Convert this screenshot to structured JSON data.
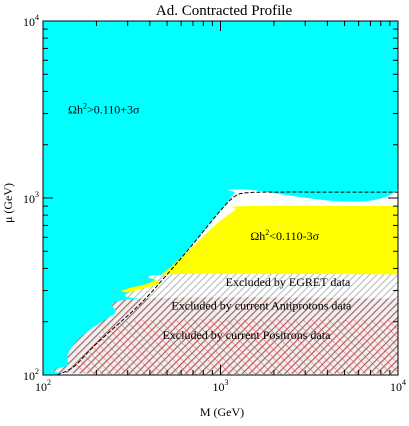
{
  "chart_data": {
    "type": "area",
    "title": "Ad. Contracted Profile",
    "xlabel": "M (GeV)",
    "ylabel": "μ (GeV)",
    "xscale": "log",
    "yscale": "log",
    "xlim": [
      100,
      10000
    ],
    "ylim": [
      100,
      10000
    ],
    "x_ticks": [
      {
        "base": "10",
        "exp": "2",
        "value": 100
      },
      {
        "base": "10",
        "exp": "3",
        "value": 1000
      },
      {
        "base": "10",
        "exp": "4",
        "value": 10000
      }
    ],
    "y_ticks": [
      {
        "base": "10",
        "exp": "2",
        "value": 100
      },
      {
        "base": "10",
        "exp": "3",
        "value": 1000
      },
      {
        "base": "10",
        "exp": "4",
        "value": 10000
      }
    ],
    "regions": [
      {
        "name": "high_relic_density",
        "label": "Ωh²>0.110+3σ",
        "label_parts": {
          "base": "Ωh",
          "sup": "2",
          "rest": ">0.110+3σ"
        },
        "color": "#00ffff",
        "boundary": [
          [
            100,
            100
          ],
          [
            100,
            10000
          ],
          [
            10000,
            10000
          ],
          [
            10000,
            1120
          ],
          [
            1300,
            1120
          ],
          [
            1200,
            1060
          ],
          [
            1000,
            850
          ],
          [
            700,
            550
          ],
          [
            500,
            370
          ],
          [
            350,
            250
          ],
          [
            200,
            150
          ],
          [
            150,
            112
          ],
          [
            120,
            100
          ]
        ]
      },
      {
        "name": "low_relic_density",
        "label": "Ωh²<0.110-3σ",
        "label_parts": {
          "base": "Ωh",
          "sup": "2",
          "rest": "<0.110-3σ"
        },
        "color": "#ffff00",
        "boundary": [
          [
            10000,
            900
          ],
          [
            1400,
            900
          ],
          [
            1200,
            850
          ],
          [
            900,
            680
          ],
          [
            600,
            460
          ],
          [
            420,
            340
          ],
          [
            340,
            290
          ],
          [
            10000,
            290
          ]
        ]
      },
      {
        "name": "egret_excluded",
        "label": "Excluded by EGRET data",
        "color": "#cccccc",
        "pattern": "diagonal hatch",
        "boundary": [
          [
            10000,
            370
          ],
          [
            500,
            370
          ],
          [
            450,
            330
          ],
          [
            350,
            270
          ],
          [
            10000,
            270
          ]
        ]
      },
      {
        "name": "antiprotons_excluded",
        "label": "Excluded by current Antiprotons data",
        "color": "#a07070",
        "pattern": "diagonal hatch",
        "boundary": [
          [
            10000,
            270
          ],
          [
            350,
            270
          ],
          [
            250,
            220
          ],
          [
            170,
            170
          ],
          [
            140,
            135
          ],
          [
            140,
            115
          ],
          [
            160,
            102
          ],
          [
            10000,
            102
          ]
        ]
      },
      {
        "name": "positrons_excluded",
        "label": "Excluded by current Positrons data",
        "color": "#ff4444",
        "pattern": "diagonal hatch",
        "boundary": [
          [
            10000,
            205
          ],
          [
            400,
            205
          ],
          [
            230,
            180
          ],
          [
            200,
            150
          ],
          [
            200,
            100
          ],
          [
            10000,
            100
          ]
        ]
      }
    ],
    "series": [
      {
        "style": "dashed",
        "color": "#000000",
        "x": [
          120,
          150,
          200,
          350,
          500,
          700,
          1000,
          1200,
          1400,
          2000,
          5000,
          10000
        ],
        "y": [
          100,
          112,
          150,
          250,
          370,
          550,
          850,
          1020,
          1070,
          1080,
          1080,
          1080
        ]
      }
    ]
  }
}
